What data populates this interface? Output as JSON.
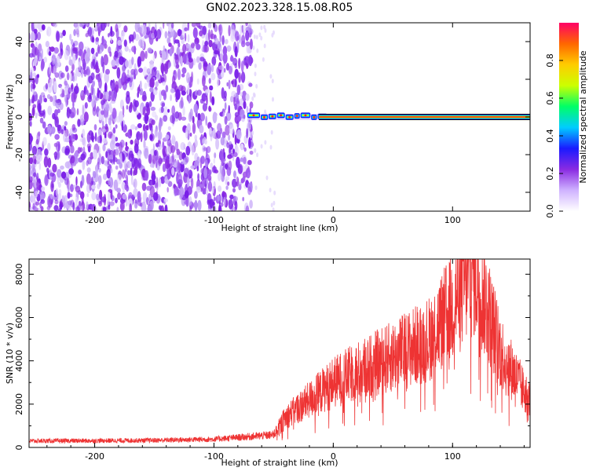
{
  "figure_title": "GN02.2023.328.15.08.R05",
  "colors": {
    "snr_line": "#ee3333",
    "axis": "#000000",
    "spectrogram_noise": "#7a2be6",
    "spectrogram_line_core": "#ff2222"
  },
  "chart_data": [
    {
      "type": "heatmap",
      "name": "spectrogram",
      "xlabel": "Height of straight line (km)",
      "ylabel": "Frequency (Hz)",
      "xlim": [
        -255,
        165
      ],
      "ylim": [
        -50,
        50
      ],
      "xticks": [
        -200,
        -100,
        0,
        100
      ],
      "yticks": [
        -40,
        -20,
        0,
        20,
        40
      ],
      "features": {
        "noise_region_x": [
          -255,
          -68
        ],
        "signal_line_freq_hz": 0,
        "signal_start_x": -72,
        "signal_end_x": 165
      },
      "colorbar": {
        "label": "Normalized spectral amplitude",
        "range": [
          0,
          1
        ],
        "ticks": [
          0.0,
          0.2,
          0.4,
          0.6,
          0.8
        ],
        "colormap": [
          "#ffffff",
          "#cfb2ff",
          "#8a2be2",
          "#1a1aff",
          "#00ccff",
          "#00ff66",
          "#ccff00",
          "#ffcc00",
          "#ff6600",
          "#ff0066"
        ]
      },
      "grid": false
    },
    {
      "type": "line",
      "name": "snr",
      "xlabel": "Height of straight line (km)",
      "ylabel": "SNR (10 * v/v)",
      "xlim": [
        -255,
        165
      ],
      "ylim": [
        0,
        8700
      ],
      "xticks": [
        -200,
        -100,
        0,
        100
      ],
      "yticks": [
        0,
        2000,
        4000,
        6000,
        8000
      ],
      "grid": false,
      "series": [
        {
          "x": [
            -255,
            -200,
            -150,
            -100,
            -70,
            -50,
            -40,
            -20,
            0,
            20,
            50,
            80,
            100,
            110,
            118,
            125,
            140,
            160,
            165
          ],
          "values": [
            300,
            310,
            330,
            380,
            500,
            580,
            1400,
            2200,
            3000,
            3500,
            4200,
            5000,
            6500,
            7800,
            8300,
            7200,
            4500,
            2600,
            2200
          ]
        }
      ]
    }
  ]
}
